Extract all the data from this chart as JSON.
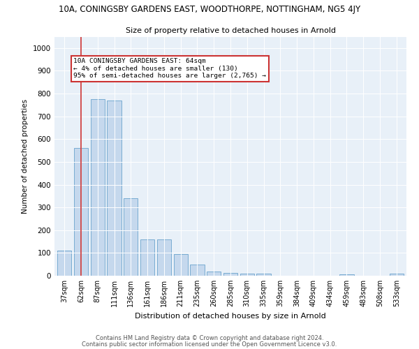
{
  "title_line1": "10A, CONINGSBY GARDENS EAST, WOODTHORPE, NOTTINGHAM, NG5 4JY",
  "title_line2": "Size of property relative to detached houses in Arnold",
  "xlabel": "Distribution of detached houses by size in Arnold",
  "ylabel": "Number of detached properties",
  "categories": [
    "37sqm",
    "62sqm",
    "87sqm",
    "111sqm",
    "136sqm",
    "161sqm",
    "186sqm",
    "211sqm",
    "235sqm",
    "260sqm",
    "285sqm",
    "310sqm",
    "335sqm",
    "359sqm",
    "384sqm",
    "409sqm",
    "434sqm",
    "459sqm",
    "483sqm",
    "508sqm",
    "533sqm"
  ],
  "values": [
    110,
    560,
    775,
    770,
    340,
    160,
    160,
    95,
    50,
    18,
    12,
    10,
    10,
    0,
    0,
    0,
    0,
    7,
    0,
    0,
    8
  ],
  "bar_color": "#c5d8ed",
  "bar_edge_color": "#6aa3cc",
  "vline_x": 1,
  "vline_color": "#cc3333",
  "annotation_box_text": "10A CONINGSBY GARDENS EAST: 64sqm\n← 4% of detached houses are smaller (130)\n95% of semi-detached houses are larger (2,765) →",
  "box_color": "white",
  "box_edge_color": "#cc3333",
  "ylim": [
    0,
    1050
  ],
  "yticks": [
    0,
    100,
    200,
    300,
    400,
    500,
    600,
    700,
    800,
    900,
    1000
  ],
  "bg_color": "#e8f0f8",
  "footer_line1": "Contains HM Land Registry data © Crown copyright and database right 2024.",
  "footer_line2": "Contains public sector information licensed under the Open Government Licence v3.0."
}
